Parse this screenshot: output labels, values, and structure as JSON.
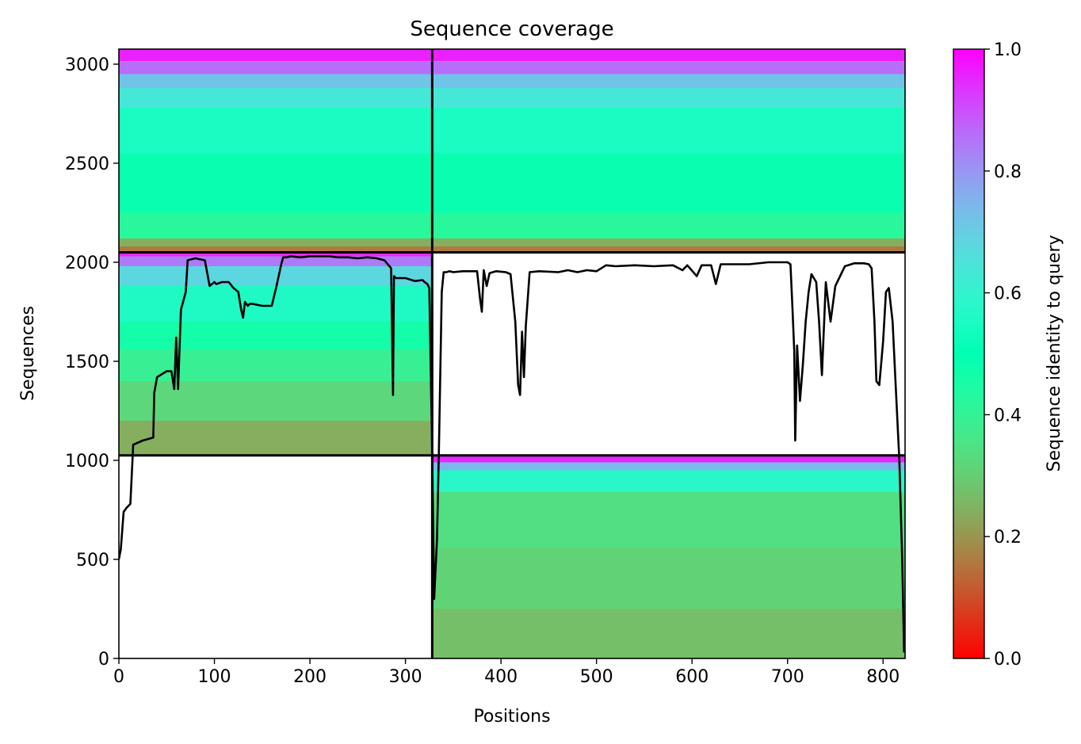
{
  "chart_data": {
    "type": "heatmap",
    "title": "Sequence coverage",
    "xlabel": "Positions",
    "ylabel": "Sequences",
    "xlim": [
      0,
      823
    ],
    "ylim": [
      0,
      3076
    ],
    "xticks": [
      0,
      100,
      200,
      300,
      400,
      500,
      600,
      700,
      800
    ],
    "yticks": [
      0,
      500,
      1000,
      1500,
      2000,
      2500,
      3000
    ],
    "colormap": "rainbow_r",
    "colorbar": {
      "label": "Sequence identity to query",
      "range": [
        0.0,
        1.0
      ],
      "ticks": [
        "0.0",
        "0.2",
        "0.4",
        "0.6",
        "0.8",
        "1.0"
      ]
    },
    "blocks": [
      {
        "name": "block-top",
        "x_range": [
          0,
          823
        ],
        "y_range": [
          2050,
          3076
        ],
        "identity_bands": [
          {
            "y": [
              3015,
              3076
            ],
            "identity": 0.96
          },
          {
            "y": [
              2950,
              3015
            ],
            "identity": 0.86
          },
          {
            "y": [
              2880,
              2950
            ],
            "identity": 0.72
          },
          {
            "y": [
              2780,
              2880
            ],
            "identity": 0.64
          },
          {
            "y": [
              2550,
              2780
            ],
            "identity": 0.55
          },
          {
            "y": [
              2250,
              2550
            ],
            "identity": 0.48
          },
          {
            "y": [
              2120,
              2250
            ],
            "identity": 0.42
          },
          {
            "y": [
              2080,
              2120
            ],
            "identity": 0.24
          },
          {
            "y": [
              2050,
              2080
            ],
            "identity": 0.16
          }
        ]
      },
      {
        "name": "block-middle",
        "x_range": [
          0,
          328
        ],
        "y_range": [
          1025,
          2050
        ],
        "identity_bands": [
          {
            "y": [
              2030,
              2050
            ],
            "identity": 0.95
          },
          {
            "y": [
              1980,
              2030
            ],
            "identity": 0.84
          },
          {
            "y": [
              1880,
              1980
            ],
            "identity": 0.68
          },
          {
            "y": [
              1700,
              1880
            ],
            "identity": 0.56
          },
          {
            "y": [
              1560,
              1700
            ],
            "identity": 0.46
          },
          {
            "y": [
              1400,
              1560
            ],
            "identity": 0.39
          },
          {
            "y": [
              1200,
              1400
            ],
            "identity": 0.32
          },
          {
            "y": [
              1025,
              1200
            ],
            "identity": 0.24
          }
        ]
      },
      {
        "name": "block-bottom",
        "x_range": [
          328,
          823
        ],
        "y_range": [
          0,
          1025
        ],
        "identity_bands": [
          {
            "y": [
              990,
              1025
            ],
            "identity": 0.95
          },
          {
            "y": [
              950,
              990
            ],
            "identity": 0.74
          },
          {
            "y": [
              840,
              950
            ],
            "identity": 0.58
          },
          {
            "y": [
              560,
              840
            ],
            "identity": 0.34
          },
          {
            "y": [
              250,
              560
            ],
            "identity": 0.31
          },
          {
            "y": [
              0,
              250
            ],
            "identity": 0.27
          }
        ]
      }
    ],
    "block_dividers": [
      {
        "orientation": "vertical",
        "x": 328
      },
      {
        "orientation": "horizontal",
        "y": 2050
      },
      {
        "orientation": "horizontal",
        "y": 1025
      }
    ],
    "coverage_line": {
      "x": [
        0,
        2,
        5,
        8,
        12,
        15,
        15.5,
        25,
        36,
        37,
        40,
        50,
        55,
        58,
        60,
        62,
        65,
        70,
        72,
        80,
        90,
        95,
        100,
        102,
        108,
        115,
        120,
        125,
        128,
        130,
        132,
        135,
        137,
        140,
        150,
        160,
        165,
        170,
        172,
        175,
        180,
        190,
        200,
        210,
        220,
        230,
        240,
        250,
        260,
        270,
        278,
        285,
        287,
        288,
        290,
        300,
        310,
        318,
        320,
        323,
        325,
        328,
        330,
        333,
        335,
        338,
        340,
        343,
        346,
        350,
        360,
        375,
        378,
        380,
        382,
        385,
        388,
        395,
        405,
        410,
        415,
        418,
        420,
        422,
        424,
        426,
        430,
        440,
        460,
        470,
        480,
        490,
        500,
        510,
        520,
        540,
        560,
        580,
        590,
        595,
        605,
        610,
        620,
        625,
        630,
        640,
        660,
        680,
        690,
        700,
        703,
        705,
        707,
        708,
        710,
        713,
        716,
        719,
        722,
        725,
        730,
        733,
        736,
        740,
        745,
        750,
        760,
        770,
        780,
        785,
        788,
        791,
        793,
        796,
        800,
        803,
        806,
        810,
        813,
        817,
        820,
        822
      ],
      "y": [
        500,
        550,
        740,
        760,
        780,
        1080,
        1080,
        1100,
        1115,
        1340,
        1420,
        1450,
        1450,
        1360,
        1620,
        1360,
        1760,
        1850,
        2010,
        2020,
        2010,
        1880,
        1900,
        1890,
        1900,
        1900,
        1870,
        1850,
        1760,
        1720,
        1800,
        1780,
        1790,
        1790,
        1780,
        1780,
        1880,
        1990,
        2025,
        2025,
        2030,
        2025,
        2030,
        2030,
        2030,
        2025,
        2025,
        2020,
        2025,
        2020,
        2010,
        1970,
        1330,
        1930,
        1920,
        1920,
        1905,
        1910,
        1900,
        1890,
        1870,
        1030,
        300,
        600,
        1050,
        1850,
        1950,
        1950,
        1955,
        1950,
        1955,
        1955,
        1820,
        1750,
        1960,
        1880,
        1945,
        1955,
        1950,
        1940,
        1700,
        1380,
        1330,
        1650,
        1420,
        1680,
        1950,
        1955,
        1950,
        1960,
        1950,
        1960,
        1955,
        1985,
        1980,
        1985,
        1980,
        1985,
        1960,
        1985,
        1930,
        1985,
        1985,
        1890,
        1990,
        1990,
        1990,
        2000,
        2000,
        2000,
        1990,
        1780,
        1550,
        1100,
        1580,
        1300,
        1480,
        1700,
        1850,
        1940,
        1900,
        1700,
        1430,
        1900,
        1700,
        1880,
        1980,
        1995,
        1995,
        1990,
        1970,
        1700,
        1400,
        1380,
        1600,
        1850,
        1870,
        1700,
        1400,
        1000,
        500,
        30
      ]
    }
  }
}
